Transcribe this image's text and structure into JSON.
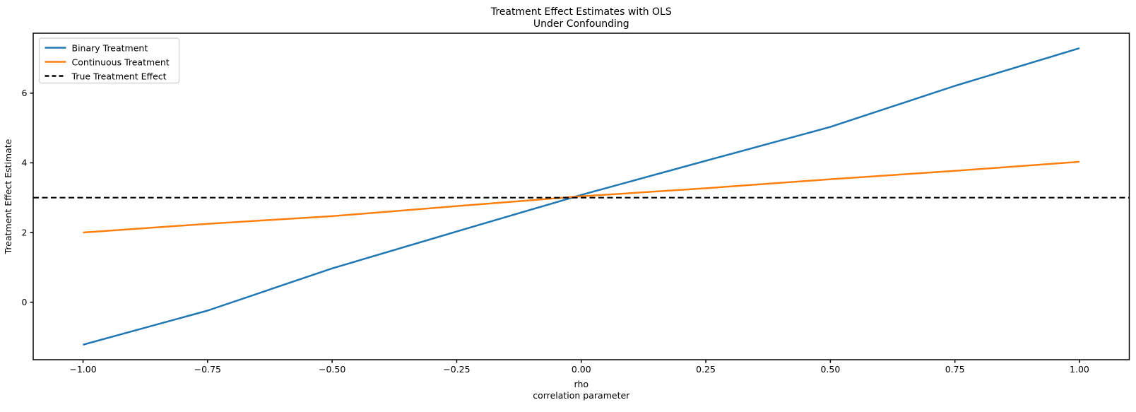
{
  "chart_data": {
    "type": "line",
    "title_lines": [
      "Treatment Effect Estimates with OLS",
      "Under Confounding"
    ],
    "xlabel_lines": [
      "rho",
      "correlation parameter"
    ],
    "ylabel": "Treatment Effect Estimate",
    "x": [
      -1.0,
      -0.75,
      -0.5,
      -0.25,
      0.0,
      0.25,
      0.5,
      0.75,
      1.0
    ],
    "series": [
      {
        "name": "Binary Treatment",
        "color": "#1f77b4",
        "linestyle": "solid",
        "values": [
          -1.22,
          -0.24,
          0.97,
          2.03,
          3.08,
          4.06,
          5.03,
          6.21,
          7.29
        ]
      },
      {
        "name": "Continuous Treatment",
        "color": "#ff7f0e",
        "linestyle": "solid",
        "values": [
          2.0,
          2.25,
          2.47,
          2.76,
          3.04,
          3.27,
          3.53,
          3.77,
          4.03
        ]
      },
      {
        "name": "True Treatment Effect",
        "color": "#000000",
        "linestyle": "dashed",
        "x": [
          -1.1,
          1.1
        ],
        "values": [
          3,
          3
        ]
      }
    ],
    "xlim": [
      -1.1,
      1.1
    ],
    "ylim": [
      -1.65,
      7.72
    ],
    "xticks": {
      "values": [
        -1.0,
        -0.75,
        -0.5,
        -0.25,
        0.0,
        0.25,
        0.5,
        0.75,
        1.0
      ],
      "labels": [
        "−1.00",
        "−0.75",
        "−0.50",
        "−0.25",
        "0.00",
        "0.25",
        "0.50",
        "0.75",
        "1.00"
      ]
    },
    "yticks": {
      "values": [
        0,
        2,
        4,
        6
      ],
      "labels": [
        "0",
        "2",
        "4",
        "6"
      ]
    },
    "legend": {
      "position": "upper left",
      "entries": [
        "Binary Treatment",
        "Continuous Treatment",
        "True Treatment Effect"
      ]
    },
    "grid": false,
    "background_color": "#ffffff",
    "true_effect_value": 3
  }
}
